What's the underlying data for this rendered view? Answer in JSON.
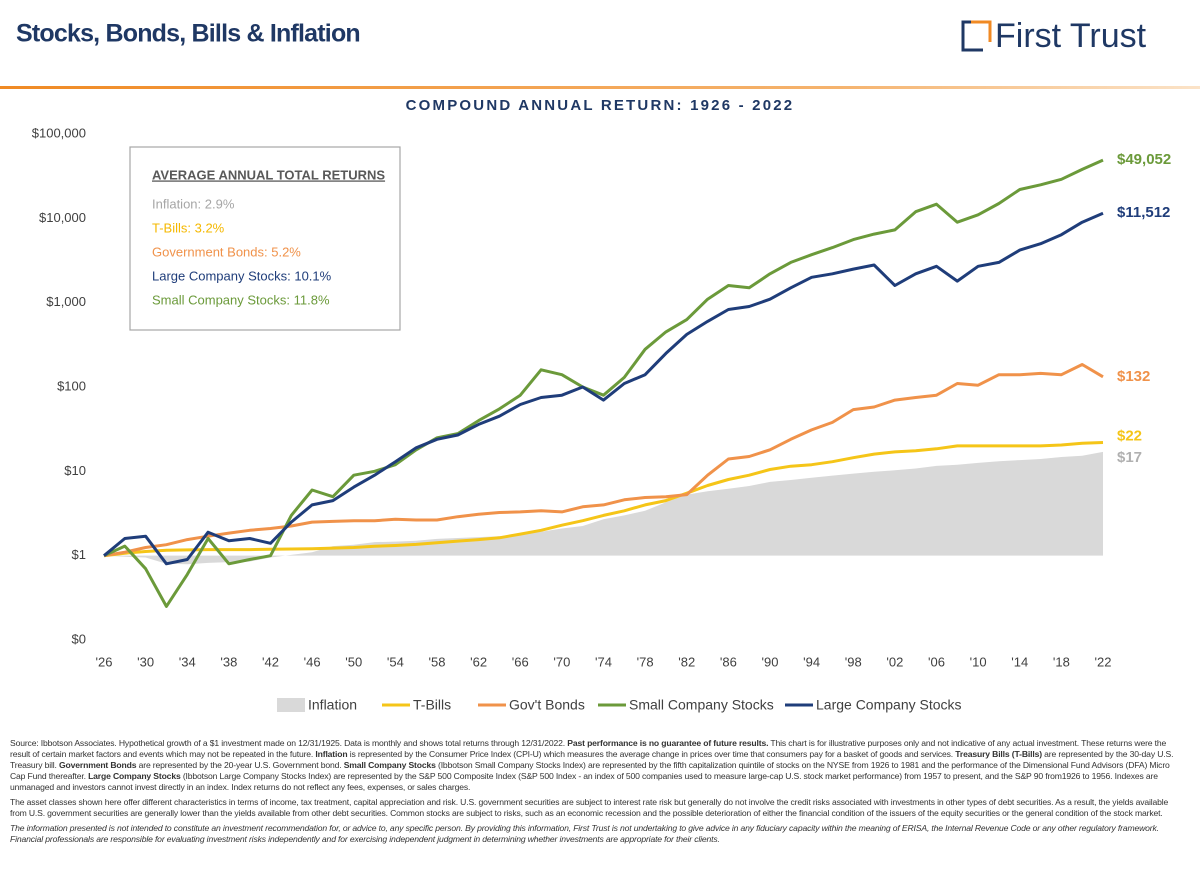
{
  "header": {
    "title": "Stocks, Bonds, Bills & Inflation",
    "logo": "First Trust"
  },
  "chart_data": {
    "type": "line",
    "title": "COMPOUND ANNUAL RETURN: 1926 - 2022",
    "log_y": true,
    "grid": false,
    "xlim": [
      1926,
      2022
    ],
    "ylim": [
      0.1,
      100000
    ],
    "xticks": [
      {
        "value": 1926,
        "label": "'26"
      },
      {
        "value": 1930,
        "label": "'30"
      },
      {
        "value": 1934,
        "label": "'34"
      },
      {
        "value": 1938,
        "label": "'38"
      },
      {
        "value": 1942,
        "label": "'42"
      },
      {
        "value": 1946,
        "label": "'46"
      },
      {
        "value": 1950,
        "label": "'50"
      },
      {
        "value": 1954,
        "label": "'54"
      },
      {
        "value": 1958,
        "label": "'58"
      },
      {
        "value": 1962,
        "label": "'62"
      },
      {
        "value": 1966,
        "label": "'66"
      },
      {
        "value": 1970,
        "label": "'70"
      },
      {
        "value": 1974,
        "label": "'74"
      },
      {
        "value": 1978,
        "label": "'78"
      },
      {
        "value": 1982,
        "label": "'82"
      },
      {
        "value": 1986,
        "label": "'86"
      },
      {
        "value": 1990,
        "label": "'90"
      },
      {
        "value": 1994,
        "label": "'94"
      },
      {
        "value": 1998,
        "label": "'98"
      },
      {
        "value": 2002,
        "label": "'02"
      },
      {
        "value": 2006,
        "label": "'06"
      },
      {
        "value": 2010,
        "label": "'10"
      },
      {
        "value": 2014,
        "label": "'14"
      },
      {
        "value": 2018,
        "label": "'18"
      },
      {
        "value": 2022,
        "label": "'22"
      }
    ],
    "yticks": [
      {
        "value": 0.1,
        "label": "$0"
      },
      {
        "value": 1,
        "label": "$1"
      },
      {
        "value": 10,
        "label": "$10"
      },
      {
        "value": 100,
        "label": "$100"
      },
      {
        "value": 1000,
        "label": "$1,000"
      },
      {
        "value": 10000,
        "label": "$10,000"
      },
      {
        "value": 100000,
        "label": "$100,000"
      }
    ],
    "x": [
      1926,
      1928,
      1930,
      1932,
      1934,
      1936,
      1938,
      1940,
      1942,
      1944,
      1946,
      1948,
      1950,
      1952,
      1954,
      1956,
      1958,
      1960,
      1962,
      1964,
      1966,
      1968,
      1970,
      1972,
      1974,
      1976,
      1978,
      1980,
      1982,
      1984,
      1986,
      1988,
      1990,
      1992,
      1994,
      1996,
      1998,
      2000,
      2002,
      2004,
      2006,
      2008,
      2010,
      2012,
      2014,
      2016,
      2018,
      2020,
      2022
    ],
    "series": [
      {
        "name": "Inflation",
        "color": "#d9d9d9",
        "style": "area",
        "end_label": "$17",
        "values": [
          1.0,
          0.97,
          0.95,
          0.8,
          0.79,
          0.82,
          0.84,
          0.85,
          0.95,
          1.02,
          1.1,
          1.3,
          1.35,
          1.45,
          1.47,
          1.5,
          1.58,
          1.62,
          1.66,
          1.7,
          1.8,
          1.92,
          2.1,
          2.25,
          2.7,
          3.0,
          3.4,
          4.3,
          5.3,
          5.8,
          6.2,
          6.7,
          7.5,
          7.9,
          8.4,
          8.9,
          9.4,
          9.9,
          10.3,
          10.8,
          11.6,
          12.0,
          12.6,
          13.2,
          13.6,
          14.0,
          14.8,
          15.3,
          17
        ]
      },
      {
        "name": "T-Bills",
        "color": "#f5c518",
        "style": "line",
        "end_label": "$22",
        "values": [
          1.0,
          1.07,
          1.12,
          1.16,
          1.17,
          1.18,
          1.18,
          1.18,
          1.19,
          1.2,
          1.21,
          1.23,
          1.25,
          1.29,
          1.32,
          1.36,
          1.42,
          1.49,
          1.55,
          1.63,
          1.8,
          2.0,
          2.3,
          2.6,
          3.0,
          3.4,
          4.0,
          4.5,
          5.5,
          6.8,
          8,
          9,
          10.5,
          11.5,
          12,
          13,
          14.5,
          16,
          17,
          17.5,
          18.5,
          20,
          20,
          20,
          20,
          20,
          20.5,
          21.5,
          22
        ]
      },
      {
        "name": "Gov't Bonds",
        "color": "#f0924a",
        "style": "line",
        "end_label": "$132",
        "values": [
          1.0,
          1.1,
          1.25,
          1.35,
          1.55,
          1.7,
          1.85,
          2.0,
          2.1,
          2.25,
          2.5,
          2.55,
          2.6,
          2.6,
          2.7,
          2.65,
          2.65,
          2.9,
          3.1,
          3.25,
          3.3,
          3.4,
          3.3,
          3.8,
          4.0,
          4.6,
          4.9,
          5.0,
          5.3,
          9,
          14,
          15,
          18,
          24,
          31,
          38,
          54,
          58,
          70,
          75,
          80,
          110,
          105,
          140,
          140,
          145,
          140,
          185,
          132
        ]
      },
      {
        "name": "Small Company Stocks",
        "color": "#6b9a3a",
        "style": "line",
        "end_label": "$49,052",
        "values": [
          1.0,
          1.3,
          0.7,
          0.25,
          0.6,
          1.6,
          0.8,
          0.9,
          1.0,
          3,
          6,
          5,
          9,
          10,
          12,
          18,
          25,
          28,
          40,
          55,
          80,
          160,
          140,
          100,
          80,
          130,
          280,
          450,
          630,
          1100,
          1600,
          1500,
          2200,
          3000,
          3700,
          4500,
          5600,
          6500,
          7300,
          12000,
          14700,
          9000,
          11000,
          15000,
          22000,
          25000,
          29000,
          38000,
          49052
        ]
      },
      {
        "name": "Large Company Stocks",
        "color": "#1f3d7a",
        "style": "line",
        "end_label": "$11,512",
        "values": [
          1.0,
          1.6,
          1.7,
          0.8,
          0.9,
          1.9,
          1.5,
          1.6,
          1.4,
          2.5,
          4.0,
          4.5,
          6.5,
          9,
          13,
          19,
          24,
          27,
          36,
          45,
          62,
          75,
          80,
          100,
          70,
          110,
          140,
          250,
          420,
          600,
          830,
          900,
          1100,
          1500,
          2000,
          2200,
          2500,
          2800,
          1600,
          2200,
          2700,
          1800,
          2700,
          3000,
          4200,
          5000,
          6400,
          9000,
          11512
        ]
      }
    ],
    "inset": {
      "title": "AVERAGE ANNUAL TOTAL RETURNS",
      "items": [
        {
          "text": "Inflation: 2.9%",
          "color": "#a6a6a6"
        },
        {
          "text": "T-Bills: 3.2%",
          "color": "#f5b800"
        },
        {
          "text": "Government Bonds: 5.2%",
          "color": "#f0924a"
        },
        {
          "text": "Large Company Stocks: 10.1%",
          "color": "#1f3d7a"
        },
        {
          "text": "Small Company Stocks: 11.8%",
          "color": "#6b9a3a"
        }
      ]
    }
  },
  "footnotes": {
    "p1": [
      {
        "text": "Source: Ibbotson Associates. Hypothetical growth of a $1 investment made on 12/31/1925. Data is monthly and shows total returns through 12/31/2022. "
      },
      {
        "text": "Past performance is no guarantee of future results.",
        "bold": true
      },
      {
        "text": " This chart is for illustrative purposes only and not indicative of any actual investment. These returns were the result of certain market factors and events which may not be repeated in the future. "
      },
      {
        "text": "Inflation",
        "bold": true
      },
      {
        "text": " is represented by the Consumer Price Index (CPI-U) which measures the average change in prices over time that consumers pay for a basket of goods and services. "
      },
      {
        "text": "Treasury Bills (T-Bills)",
        "bold": true
      },
      {
        "text": " are represented by the 30-day U.S. Treasury bill. "
      },
      {
        "text": "Government Bonds",
        "bold": true
      },
      {
        "text": " are represented by the 20-year U.S. Government bond. "
      },
      {
        "text": "Small Company Stocks",
        "bold": true
      },
      {
        "text": " (Ibbotson Small Company Stocks Index) are represented by the fifth capitalization quintile of stocks on the NYSE from 1926 to 1981 and the performance of the Dimensional Fund Advisors (DFA) Micro Cap Fund thereafter. "
      },
      {
        "text": "Large Company Stocks",
        "bold": true
      },
      {
        "text": " (Ibbotson Large Company Stocks Index) are represented by the S&P 500 Composite Index (S&P 500 Index - an index of 500 companies used to measure large-cap U.S. stock market performance) from 1957 to present, and the S&P 90 from1926 to 1956. Indexes are unmanaged and investors cannot invest directly in an index. Index returns do not reflect any fees, expenses, or sales charges."
      }
    ],
    "p2": "The asset classes shown here offer different characteristics in terms of income, tax treatment, capital appreciation and risk. U.S. government securities are subject to interest rate risk but generally do not involve the credit risks associated with investments in other types of debt securities. As a result, the yields available from U.S. government securities are generally lower than the yields available from other debt securities. Common stocks are subject to risks, such as an economic recession and the possible deterioration of either the financial condition of the issuers of the equity securities or the general condition of the stock market.",
    "p3": "The information presented is not intended to constitute an investment recommendation for, or advice to, any specific person. By providing this information, First Trust is not undertaking to give advice in any fiduciary capacity within the meaning of ERISA, the Internal Revenue Code or any other regulatory framework. Financial professionals are responsible for evaluating investment risks independently and for exercising independent judgment in determining whether investments are appropriate for their clients."
  }
}
